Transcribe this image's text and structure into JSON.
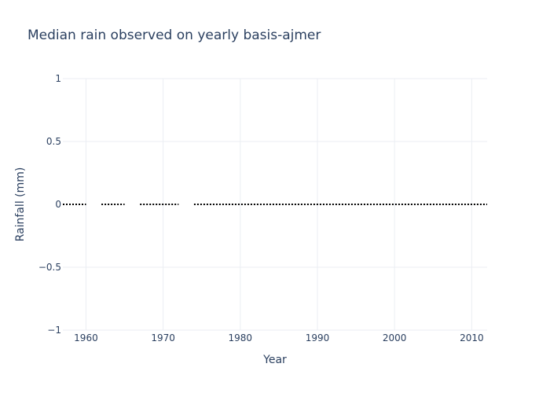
{
  "chart_data": {
    "type": "line",
    "title": "Median rain observed on yearly basis-ajmer",
    "xlabel": "Year",
    "ylabel": "Rainfall (mm)",
    "xlim": [
      1957,
      2012
    ],
    "ylim": [
      -1,
      1
    ],
    "xticks": [
      1960,
      1970,
      1980,
      1990,
      2000,
      2010
    ],
    "yticks": [
      -1,
      -0.5,
      0,
      0.5,
      1
    ],
    "ytick_labels": [
      "−1",
      "−0.5",
      "0",
      "0.5",
      "1"
    ],
    "grid": true,
    "line_style": "dotted",
    "line_color": "#000000",
    "series": [
      {
        "segments": [
          {
            "x": [
              1957,
              1960
            ],
            "y": [
              0,
              0
            ]
          },
          {
            "x": [
              1962,
              1965
            ],
            "y": [
              0,
              0
            ]
          },
          {
            "x": [
              1967,
              1972
            ],
            "y": [
              0,
              0
            ]
          },
          {
            "x": [
              1974,
              2012
            ],
            "y": [
              0,
              0
            ]
          }
        ]
      }
    ]
  }
}
